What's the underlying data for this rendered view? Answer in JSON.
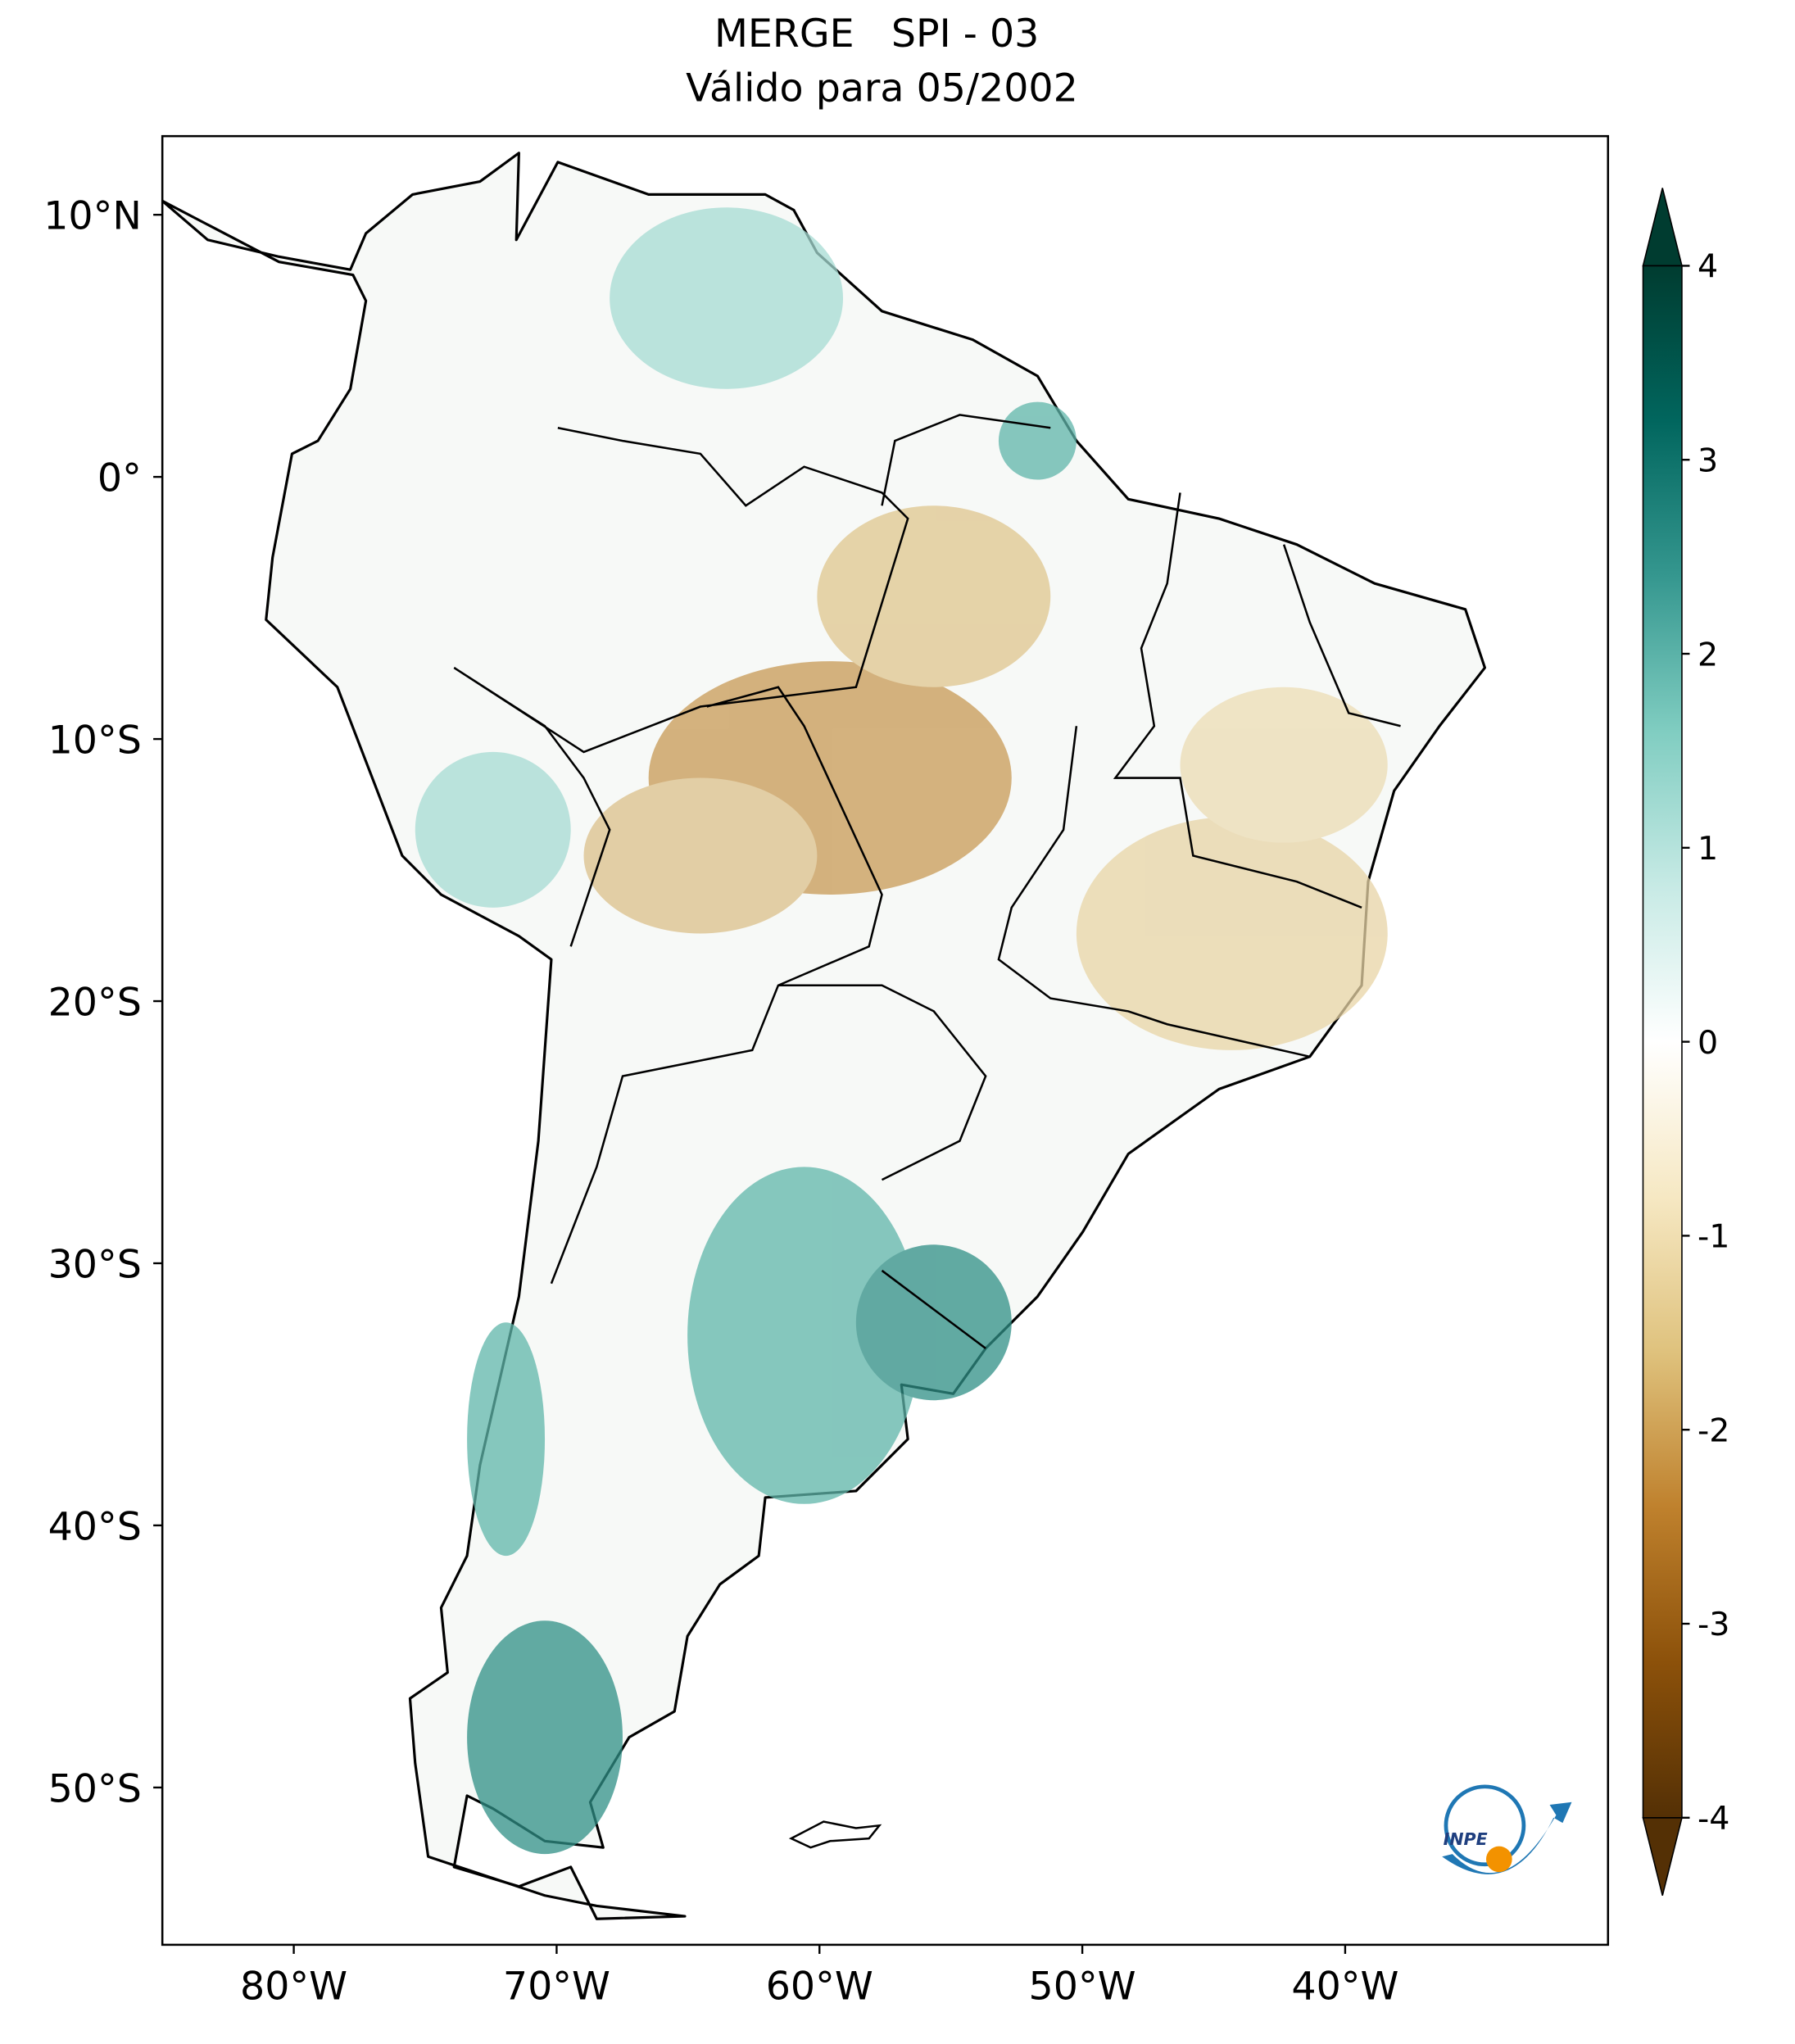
{
  "chart_data": {
    "type": "map",
    "title": "MERGE   SPI - 03",
    "subtitle": "Válido para 05/2002",
    "xlim": [
      -85,
      -30
    ],
    "ylim": [
      -56,
      13
    ],
    "xticks": [
      {
        "value": -80,
        "label": "80°W"
      },
      {
        "value": -70,
        "label": "70°W"
      },
      {
        "value": -60,
        "label": "60°W"
      },
      {
        "value": -50,
        "label": "50°W"
      },
      {
        "value": -40,
        "label": "40°W"
      }
    ],
    "yticks": [
      {
        "value": 10,
        "label": "10°N"
      },
      {
        "value": 0,
        "label": "0°"
      },
      {
        "value": -10,
        "label": "10°S"
      },
      {
        "value": -20,
        "label": "20°S"
      },
      {
        "value": -30,
        "label": "30°S"
      },
      {
        "value": -40,
        "label": "40°S"
      },
      {
        "value": -50,
        "label": "50°S"
      }
    ],
    "colorbar": {
      "lim": [
        -4,
        4
      ],
      "ticks": [
        4,
        3,
        2,
        1,
        0,
        -1,
        -2,
        -3,
        -4
      ],
      "colors": [
        "#543005",
        "#8c510a",
        "#bf812d",
        "#dfc27d",
        "#f6e8c3",
        "#ffffff",
        "#c7eae5",
        "#80cdc1",
        "#35978f",
        "#01665e",
        "#003c30"
      ]
    },
    "logo": "INPE"
  }
}
